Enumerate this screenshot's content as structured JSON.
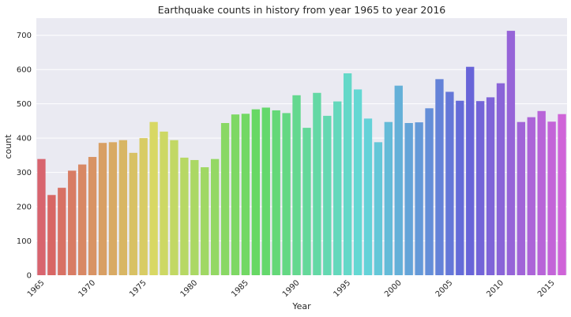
{
  "chart_data": {
    "type": "bar",
    "title": "Earthquake counts in history from year 1965 to year 2016",
    "xlabel": "Year",
    "ylabel": "count",
    "ylim": [
      0,
      750
    ],
    "yticks": [
      0,
      100,
      200,
      300,
      400,
      500,
      600,
      700
    ],
    "xtick_labels": [
      "1965",
      "1970",
      "1975",
      "1980",
      "1985",
      "1990",
      "1995",
      "2000",
      "2005",
      "2010",
      "2015"
    ],
    "grid": true,
    "background": "#EAEAF2",
    "categories": [
      1965,
      1966,
      1967,
      1968,
      1969,
      1970,
      1971,
      1972,
      1973,
      1974,
      1975,
      1976,
      1977,
      1978,
      1979,
      1980,
      1981,
      1982,
      1983,
      1984,
      1985,
      1986,
      1987,
      1988,
      1989,
      1990,
      1991,
      1992,
      1993,
      1994,
      1995,
      1996,
      1997,
      1998,
      1999,
      2000,
      2001,
      2002,
      2003,
      2004,
      2005,
      2006,
      2007,
      2008,
      2009,
      2010,
      2011,
      2012,
      2013,
      2014,
      2015,
      2016
    ],
    "values": [
      339,
      234,
      255,
      305,
      323,
      345,
      386,
      388,
      394,
      357,
      400,
      447,
      419,
      394,
      343,
      336,
      315,
      339,
      444,
      469,
      471,
      484,
      489,
      481,
      473,
      525,
      430,
      532,
      465,
      507,
      589,
      542,
      457,
      388,
      447,
      553,
      444,
      446,
      487,
      572,
      535,
      509,
      608,
      508,
      519,
      560,
      713,
      447,
      461,
      479,
      448,
      470
    ]
  }
}
